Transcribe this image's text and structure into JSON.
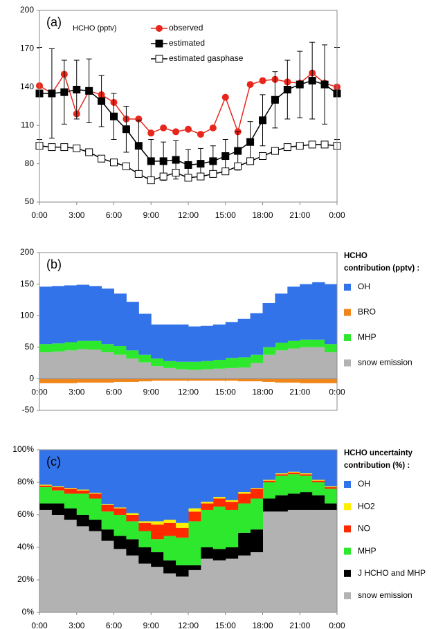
{
  "chart_data": [
    {
      "type": "line",
      "panel_label": "(a)",
      "annotation": "HCHO (pptv)",
      "legend": "top",
      "x": [
        0,
        1,
        2,
        3,
        4,
        5,
        6,
        7,
        8,
        9,
        10,
        11,
        12,
        13,
        14,
        15,
        16,
        17,
        18,
        19,
        20,
        21,
        22,
        23,
        24
      ],
      "xlim": [
        0,
        24
      ],
      "xticks": [
        {
          "value": 0,
          "label": "0:00"
        },
        {
          "value": 3,
          "label": "3:00"
        },
        {
          "value": 6,
          "label": "6:00"
        },
        {
          "value": 9,
          "label": "9:00"
        },
        {
          "value": 12,
          "label": "12:00"
        },
        {
          "value": 15,
          "label": "15:00"
        },
        {
          "value": 18,
          "label": "18:00"
        },
        {
          "value": 21,
          "label": "21:00"
        },
        {
          "value": 24,
          "label": "0:00"
        }
      ],
      "ylim": [
        50,
        200
      ],
      "yticks": [
        50,
        80,
        110,
        140,
        170,
        200
      ],
      "series": [
        {
          "name": "observed",
          "color": "#e8261b",
          "marker": "circle",
          "values": [
            141,
            135,
            150,
            119,
            137,
            134,
            128,
            115,
            115,
            104,
            108,
            105,
            107,
            103,
            108,
            132,
            105,
            142,
            145,
            146,
            144,
            143,
            151,
            143,
            140
          ]
        },
        {
          "name": "estimated",
          "color": "#000000",
          "marker": "square",
          "values": [
            135,
            135,
            136,
            138,
            137,
            129,
            117,
            107,
            94,
            82,
            82,
            83,
            79,
            80,
            82,
            86,
            90,
            97,
            114,
            130,
            138,
            142,
            145,
            142,
            135
          ],
          "errors": [
            36,
            35,
            25,
            23,
            25,
            20,
            18,
            18,
            20,
            17,
            15,
            15,
            12,
            12,
            12,
            13,
            15,
            16,
            20,
            22,
            23,
            26,
            30,
            31,
            36
          ]
        },
        {
          "name": "estimated gasphase",
          "color": "#000000",
          "marker": "open-square",
          "values": [
            94,
            93,
            93,
            92,
            89,
            84,
            81,
            78,
            72,
            67,
            70,
            73,
            69,
            70,
            72,
            74,
            78,
            82,
            86,
            90,
            93,
            94,
            95,
            95,
            94
          ]
        }
      ]
    },
    {
      "type": "bar",
      "stacked": true,
      "panel_label": "(b)",
      "legend": "right",
      "legend_title": [
        "HCHO",
        "contribution (pptv) :"
      ],
      "x": [
        0,
        1,
        2,
        3,
        4,
        5,
        6,
        7,
        8,
        9,
        10,
        11,
        12,
        13,
        14,
        15,
        16,
        17,
        18,
        19,
        20,
        21,
        22,
        23
      ],
      "xlim": [
        0,
        24
      ],
      "xticks": [
        {
          "value": 0,
          "label": "0:00"
        },
        {
          "value": 3,
          "label": "3:00"
        },
        {
          "value": 6,
          "label": "6:00"
        },
        {
          "value": 9,
          "label": "9:00"
        },
        {
          "value": 12,
          "label": "12:00"
        },
        {
          "value": 15,
          "label": "15:00"
        },
        {
          "value": 18,
          "label": "18:00"
        },
        {
          "value": 21,
          "label": "21:00"
        },
        {
          "value": 24,
          "label": "0:00"
        }
      ],
      "ylim": [
        -50,
        200
      ],
      "yticks": [
        -50,
        0,
        50,
        100,
        150,
        200
      ],
      "series": [
        {
          "name": "OH",
          "color": "#3373ea",
          "values": [
            91,
            91,
            90,
            89,
            87,
            88,
            83,
            77,
            65,
            54,
            58,
            59,
            56,
            56,
            56,
            57,
            61,
            66,
            70,
            78,
            86,
            88,
            91,
            95
          ]
        },
        {
          "name": "BRO",
          "color": "#f0861a",
          "values": [
            -7,
            -7,
            -7,
            -6,
            -6,
            -6,
            -5,
            -5,
            -4,
            -3,
            -3,
            -3,
            -3,
            -3,
            -3,
            -3,
            -4,
            -4,
            -5,
            -6,
            -6,
            -7,
            -7,
            -7
          ]
        },
        {
          "name": "MHP",
          "color": "#2ee82e",
          "values": [
            13,
            13,
            13,
            13,
            14,
            13,
            14,
            13,
            12,
            12,
            11,
            12,
            13,
            13,
            14,
            16,
            16,
            13,
            12,
            12,
            12,
            12,
            12,
            13
          ]
        },
        {
          "name": "snow emission",
          "color": "#b2b2b2",
          "values": [
            42,
            43,
            45,
            47,
            46,
            42,
            38,
            32,
            26,
            20,
            17,
            15,
            14,
            15,
            16,
            17,
            18,
            25,
            38,
            45,
            48,
            50,
            50,
            42
          ]
        }
      ]
    },
    {
      "type": "bar",
      "stacked": true,
      "panel_label": "(c)",
      "legend": "right",
      "legend_title": [
        "HCHO uncertainty",
        "contribution (%) :"
      ],
      "x": [
        0,
        1,
        2,
        3,
        4,
        5,
        6,
        7,
        8,
        9,
        10,
        11,
        12,
        13,
        14,
        15,
        16,
        17,
        18,
        19,
        20,
        21,
        22,
        23
      ],
      "xlim": [
        0,
        24
      ],
      "xticks": [
        {
          "value": 0,
          "label": "0:00"
        },
        {
          "value": 3,
          "label": "3:00"
        },
        {
          "value": 6,
          "label": "6:00"
        },
        {
          "value": 9,
          "label": "9:00"
        },
        {
          "value": 12,
          "label": "12:00"
        },
        {
          "value": 15,
          "label": "15:00"
        },
        {
          "value": 18,
          "label": "18:00"
        },
        {
          "value": 21,
          "label": "21:00"
        },
        {
          "value": 24,
          "label": "0:00"
        }
      ],
      "ylim": [
        0,
        100
      ],
      "yticks": [
        {
          "value": 0,
          "label": "0%"
        },
        {
          "value": 20,
          "label": "20%"
        },
        {
          "value": 40,
          "label": "40%"
        },
        {
          "value": 60,
          "label": "60%"
        },
        {
          "value": 80,
          "label": "80%"
        },
        {
          "value": 100,
          "label": "100%"
        }
      ],
      "series": [
        {
          "name": "OH",
          "color": "#3373ea",
          "values": [
            21.5,
            22.5,
            23.5,
            24.5,
            26.5,
            33.5,
            35.5,
            39,
            44,
            44,
            43,
            45,
            36,
            32,
            29,
            31,
            26,
            23.5,
            18.5,
            14.5,
            13.5,
            14.5,
            18.5,
            22.5
          ]
        },
        {
          "name": "HO2",
          "color": "#ffee00",
          "values": [
            0.5,
            0.5,
            0.5,
            0.5,
            0.5,
            0.5,
            0.5,
            1,
            1,
            2,
            2,
            3,
            2,
            1,
            1,
            1,
            1,
            0.5,
            0.5,
            0.5,
            0.5,
            0.5,
            0.5,
            0.5
          ]
        },
        {
          "name": "NO",
          "color": "#ff2a00",
          "values": [
            1,
            2,
            3,
            2,
            3,
            4,
            4,
            4,
            5,
            9,
            8,
            6,
            6,
            4,
            5,
            5,
            6,
            6,
            1,
            1,
            1,
            1,
            1,
            1
          ]
        },
        {
          "name": "MHP",
          "color": "#2ee82e",
          "values": [
            10,
            8,
            9,
            13,
            13,
            11,
            13,
            11,
            10,
            8,
            15,
            17,
            27,
            23,
            26,
            23,
            18,
            19,
            10,
            12,
            12,
            10,
            8,
            9
          ]
        },
        {
          "name": "J HCHO and MHP",
          "color": "#000000",
          "values": [
            4,
            7,
            7,
            7,
            7,
            7,
            8,
            10,
            10,
            9,
            8,
            7,
            3,
            7,
            7,
            7,
            14,
            14,
            8,
            10,
            10,
            11,
            9,
            4
          ]
        },
        {
          "name": "snow emission",
          "color": "#b2b2b2",
          "values": [
            63,
            60,
            57,
            53,
            50,
            44,
            39,
            35,
            30,
            28,
            24,
            22,
            26,
            33,
            32,
            33,
            35,
            37,
            62,
            62,
            63,
            63,
            63,
            63
          ]
        }
      ]
    }
  ]
}
